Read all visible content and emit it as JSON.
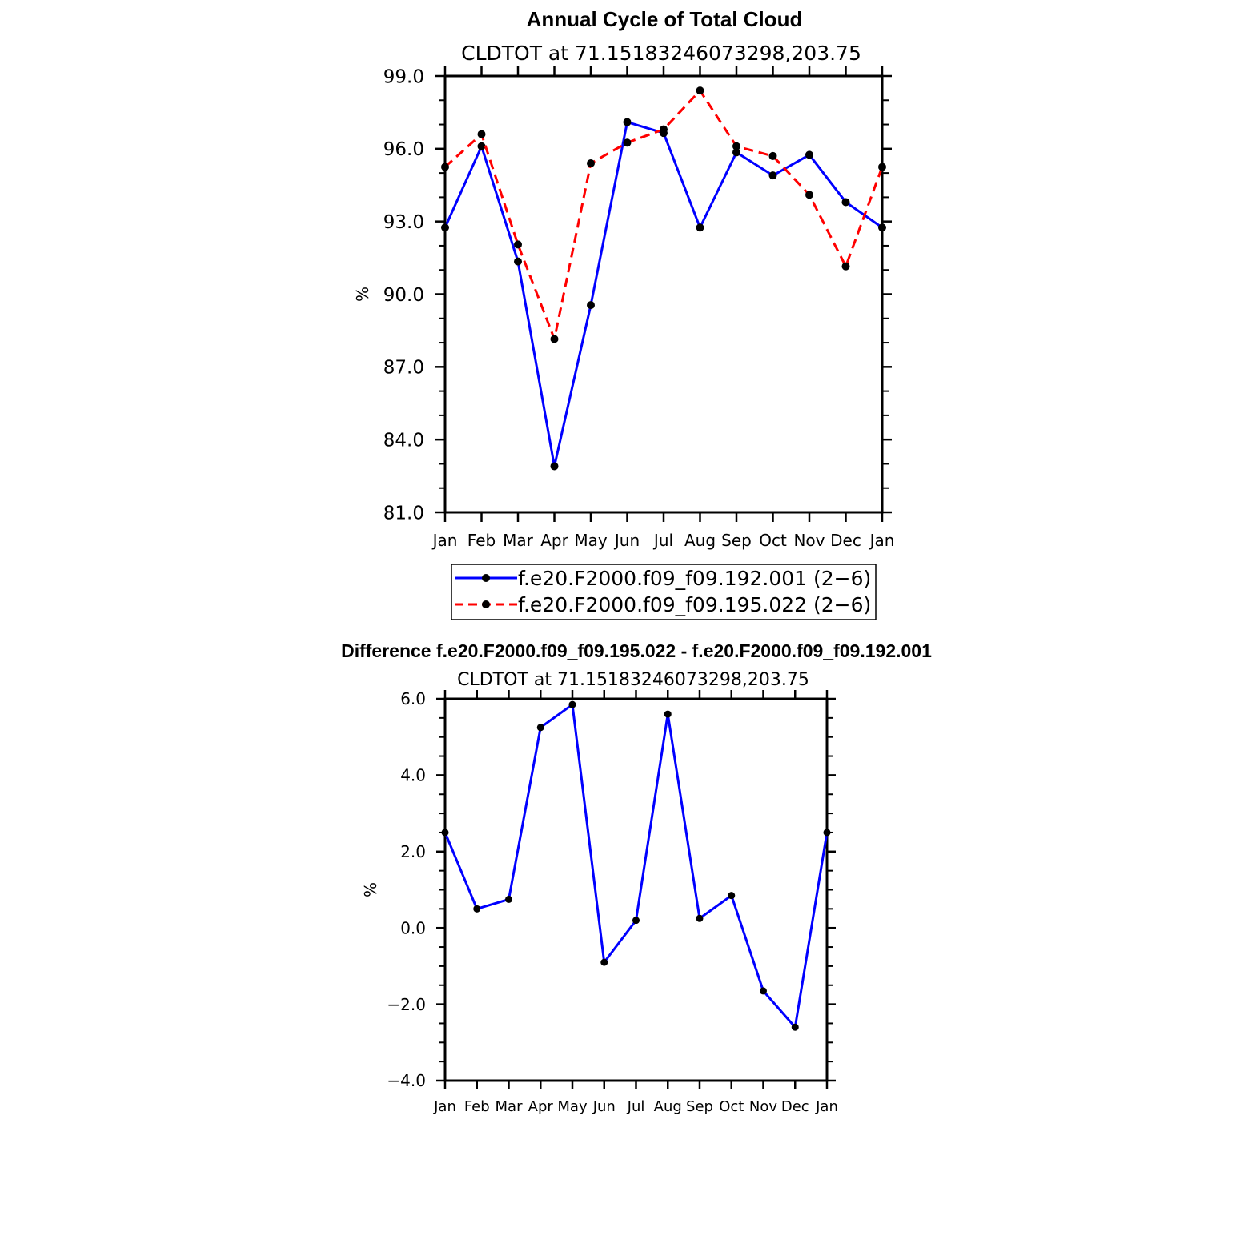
{
  "chart_data": [
    {
      "type": "line",
      "title": "Annual Cycle of Total Cloud",
      "subtitle": "CLDTOT at 71.15183246073298,203.75",
      "xlabel": "",
      "ylabel": "%",
      "categories": [
        "Jan",
        "Feb",
        "Mar",
        "Apr",
        "May",
        "Jun",
        "Jul",
        "Aug",
        "Sep",
        "Oct",
        "Nov",
        "Dec",
        "Jan"
      ],
      "ylim": [
        81.0,
        99.0
      ],
      "yticks": [
        "81.0",
        "84.0",
        "87.0",
        "90.0",
        "93.0",
        "96.0",
        "99.0"
      ],
      "grid": false,
      "series": [
        {
          "name": "f.e20.F2000.f09_f09.192.001 (2−6)",
          "color": "#0000ff",
          "dash": "solid",
          "values": [
            92.75,
            96.1,
            91.35,
            82.9,
            89.55,
            97.1,
            96.65,
            92.75,
            95.85,
            94.9,
            95.75,
            93.8,
            92.75
          ]
        },
        {
          "name": "f.e20.F2000.f09_f09.195.022 (2−6)",
          "color": "#ff0000",
          "dash": "dashed",
          "values": [
            95.25,
            96.6,
            92.05,
            88.15,
            95.4,
            96.25,
            96.8,
            98.4,
            96.1,
            95.7,
            94.1,
            91.15,
            95.25
          ]
        }
      ],
      "legend": "bottom"
    },
    {
      "type": "line",
      "title": "Difference f.e20.F2000.f09_f09.195.022 - f.e20.F2000.f09_f09.192.001",
      "subtitle": "CLDTOT at 71.15183246073298,203.75",
      "xlabel": "",
      "ylabel": "%",
      "categories": [
        "Jan",
        "Feb",
        "Mar",
        "Apr",
        "May",
        "Jun",
        "Jul",
        "Aug",
        "Sep",
        "Oct",
        "Nov",
        "Dec",
        "Jan"
      ],
      "ylim": [
        -4.0,
        6.0
      ],
      "yticks": [
        "−4.0",
        "−2.0",
        "0.0",
        "2.0",
        "4.0",
        "6.0"
      ],
      "grid": false,
      "series": [
        {
          "name": "Difference",
          "color": "#0000ff",
          "dash": "solid",
          "values": [
            2.5,
            0.5,
            0.75,
            5.25,
            5.85,
            -0.9,
            0.2,
            5.6,
            0.25,
            0.85,
            -1.65,
            -2.6,
            2.5
          ]
        }
      ]
    }
  ]
}
